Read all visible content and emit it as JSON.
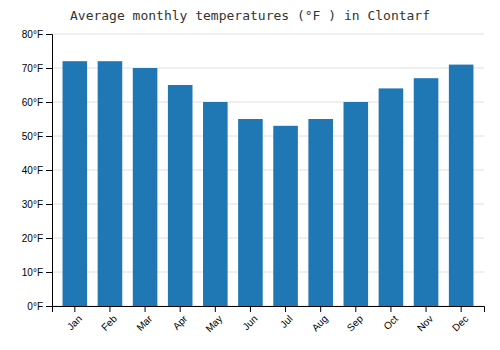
{
  "chart_data": {
    "type": "bar",
    "title": "Average monthly temperatures (°F ) in Clontarf",
    "categories": [
      "Jan",
      "Feb",
      "Mar",
      "Apr",
      "May",
      "Jun",
      "Jul",
      "Aug",
      "Sep",
      "Oct",
      "Nov",
      "Dec"
    ],
    "values": [
      72,
      72,
      70,
      65,
      60,
      55,
      53,
      55,
      60,
      64,
      67,
      71
    ],
    "ylim": [
      0,
      80
    ],
    "yticks": [
      {
        "value": 0,
        "label": "0°F"
      },
      {
        "value": 10,
        "label": "10°F"
      },
      {
        "value": 20,
        "label": "20°F"
      },
      {
        "value": 30,
        "label": "30°F"
      },
      {
        "value": 40,
        "label": "40°F"
      },
      {
        "value": 50,
        "label": "50°F"
      },
      {
        "value": 60,
        "label": "60°F"
      },
      {
        "value": 70,
        "label": "70°F"
      },
      {
        "value": 80,
        "label": "80°F"
      }
    ],
    "grid": true
  }
}
